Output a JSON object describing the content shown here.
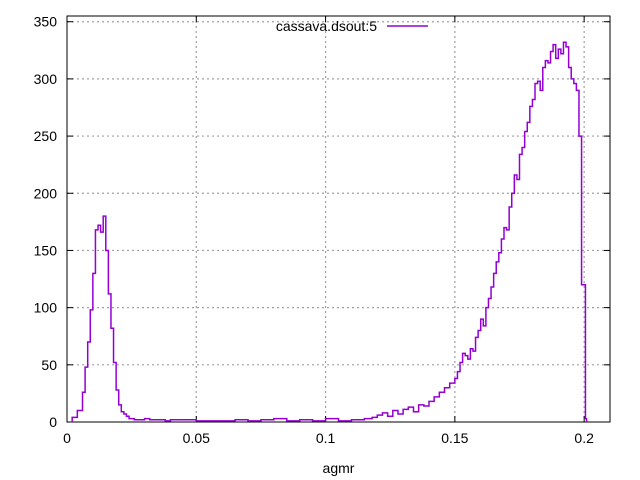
{
  "chart_data": {
    "type": "line",
    "title": "",
    "xlabel": "agmr",
    "ylabel": "",
    "xlim": [
      0,
      0.21
    ],
    "ylim": [
      0,
      355
    ],
    "grid": true,
    "legend_position": "top-center",
    "x_ticks": [
      0,
      0.05,
      0.1,
      0.15,
      0.2
    ],
    "x_tick_labels": [
      "0",
      "0.05",
      "0.1",
      "0.15",
      "0.2"
    ],
    "y_ticks": [
      0,
      50,
      100,
      150,
      200,
      250,
      300,
      350
    ],
    "y_tick_labels": [
      "0",
      "50",
      "100",
      "150",
      "200",
      "250",
      "300",
      "350"
    ],
    "series": [
      {
        "name": "cassava.dsout:5",
        "color": "#9400d3",
        "style": "steps",
        "x": [
          0.002,
          0.004,
          0.006,
          0.007,
          0.008,
          0.009,
          0.01,
          0.011,
          0.012,
          0.013,
          0.014,
          0.015,
          0.016,
          0.017,
          0.018,
          0.019,
          0.02,
          0.021,
          0.022,
          0.023,
          0.024,
          0.026,
          0.028,
          0.03,
          0.032,
          0.035,
          0.038,
          0.04,
          0.045,
          0.05,
          0.055,
          0.06,
          0.065,
          0.07,
          0.075,
          0.08,
          0.085,
          0.09,
          0.095,
          0.1,
          0.105,
          0.11,
          0.115,
          0.118,
          0.12,
          0.122,
          0.124,
          0.126,
          0.128,
          0.13,
          0.132,
          0.134,
          0.136,
          0.138,
          0.14,
          0.142,
          0.144,
          0.146,
          0.148,
          0.15,
          0.151,
          0.152,
          0.153,
          0.154,
          0.155,
          0.156,
          0.157,
          0.158,
          0.159,
          0.16,
          0.161,
          0.162,
          0.163,
          0.164,
          0.165,
          0.166,
          0.167,
          0.168,
          0.169,
          0.17,
          0.171,
          0.172,
          0.173,
          0.174,
          0.175,
          0.176,
          0.177,
          0.178,
          0.179,
          0.18,
          0.181,
          0.182,
          0.183,
          0.184,
          0.185,
          0.186,
          0.187,
          0.188,
          0.189,
          0.19,
          0.191,
          0.192,
          0.193,
          0.194,
          0.195,
          0.196,
          0.197,
          0.198,
          0.199,
          0.2005
        ],
        "values": [
          4,
          10,
          26,
          48,
          70,
          98,
          130,
          168,
          172,
          166,
          180,
          150,
          112,
          82,
          52,
          28,
          15,
          9,
          7,
          5,
          3,
          2,
          2,
          3,
          2,
          2,
          1,
          2,
          2,
          1,
          1,
          1,
          2,
          1,
          2,
          3,
          1,
          2,
          1,
          3,
          1,
          2,
          3,
          4,
          6,
          8,
          5,
          10,
          7,
          11,
          13,
          9,
          15,
          14,
          18,
          22,
          26,
          30,
          34,
          38,
          44,
          52,
          60,
          58,
          55,
          64,
          62,
          74,
          80,
          90,
          84,
          100,
          108,
          118,
          130,
          140,
          148,
          160,
          170,
          168,
          188,
          200,
          216,
          212,
          234,
          240,
          254,
          262,
          276,
          282,
          296,
          298,
          290,
          310,
          316,
          314,
          324,
          330,
          318,
          326,
          322,
          332,
          328,
          310,
          300,
          296,
          290,
          250,
          120,
          3
        ]
      }
    ]
  }
}
